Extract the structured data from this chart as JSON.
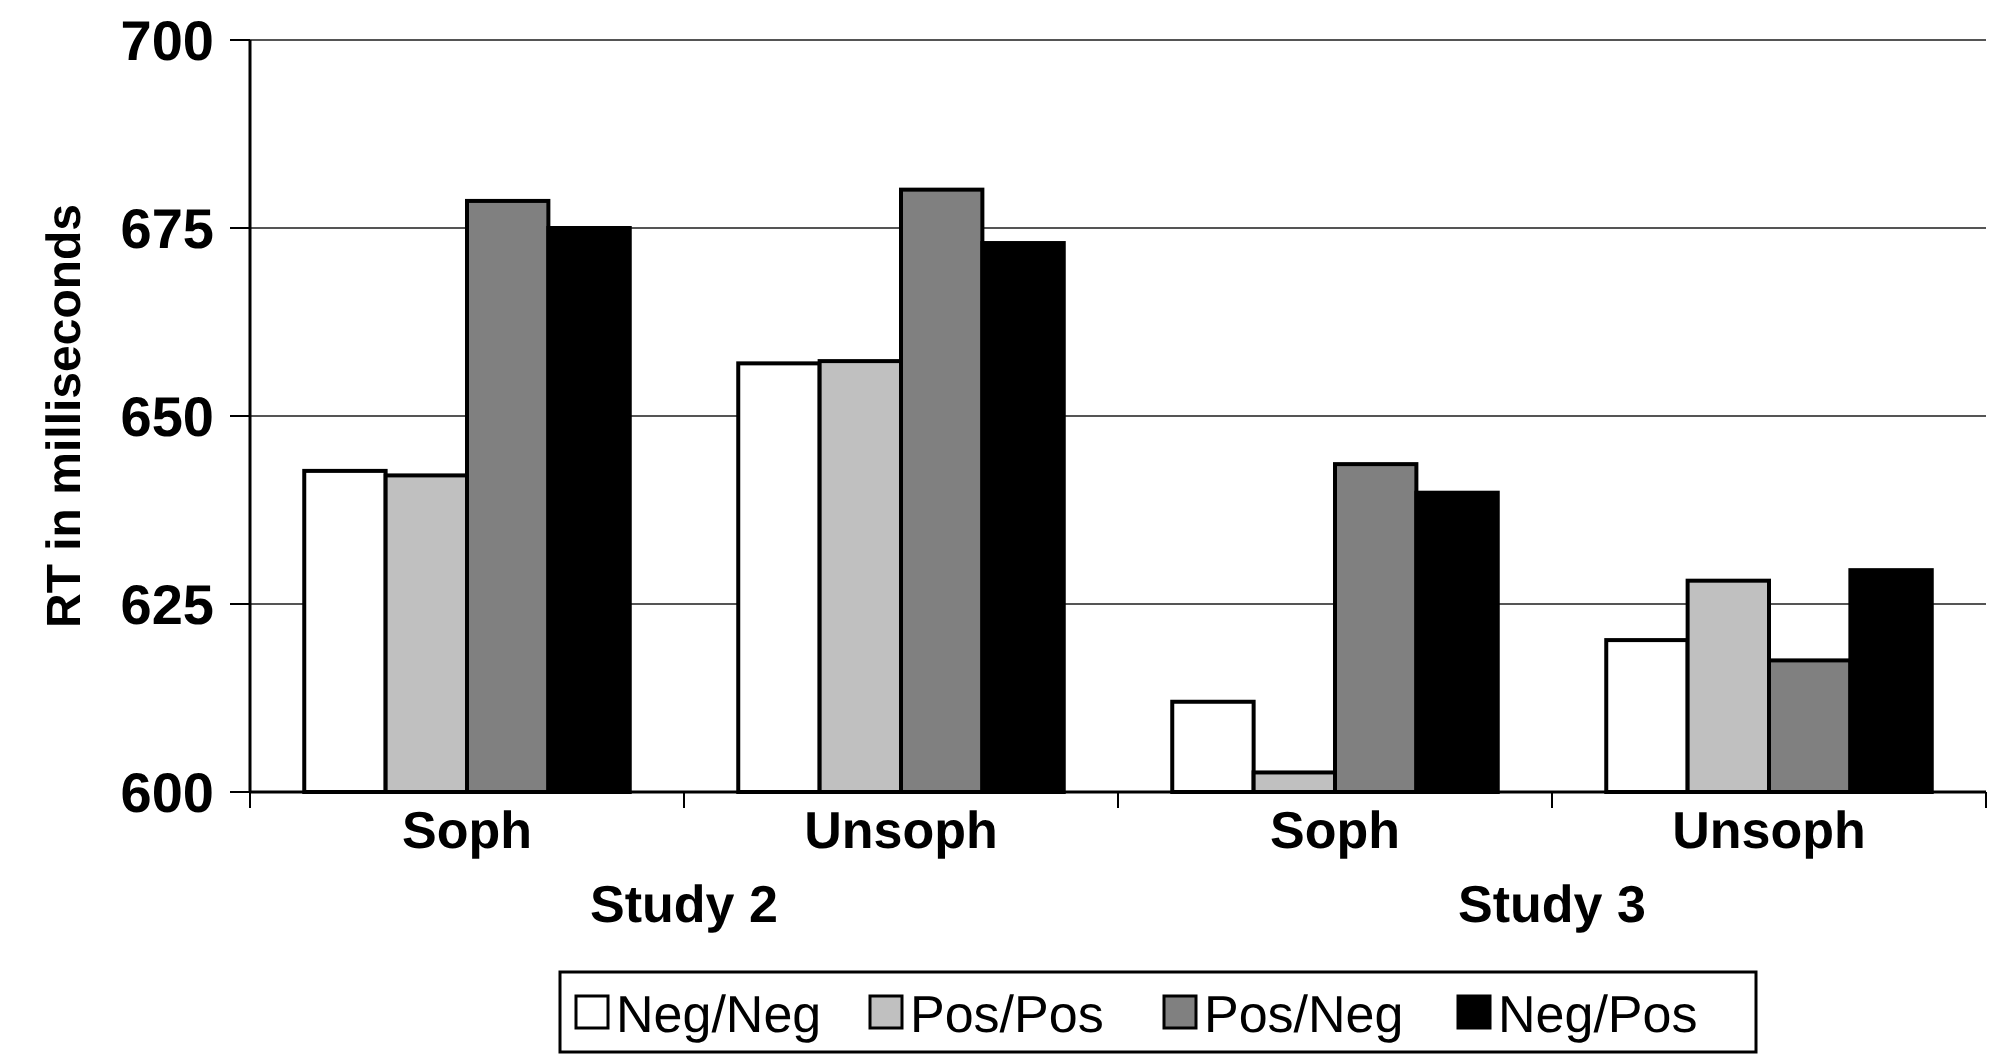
{
  "chart_data": {
    "type": "bar",
    "ylabel": "RT in milliseconds",
    "categories": [
      "Soph",
      "Unsoph",
      "Soph",
      "Unsoph"
    ],
    "annotations": [
      "Study 2",
      "Study 3"
    ],
    "series": [
      {
        "name": "Neg/Neg",
        "color": "#ffffff",
        "values": [
          642.7,
          657.0,
          612.0,
          620.2
        ]
      },
      {
        "name": "Pos/Pos",
        "color": "#c0c0c0",
        "values": [
          642.1,
          657.3,
          602.6,
          628.1
        ]
      },
      {
        "name": "Pos/Neg",
        "color": "#808080",
        "values": [
          678.6,
          680.1,
          643.6,
          617.5
        ]
      },
      {
        "name": "Neg/Pos",
        "color": "#000000",
        "values": [
          675.0,
          673.0,
          639.8,
          629.5
        ]
      }
    ],
    "ylim": [
      600,
      700
    ],
    "yticks": [
      600,
      625,
      650,
      675,
      700
    ],
    "grid": "y",
    "legend": "bottom"
  }
}
